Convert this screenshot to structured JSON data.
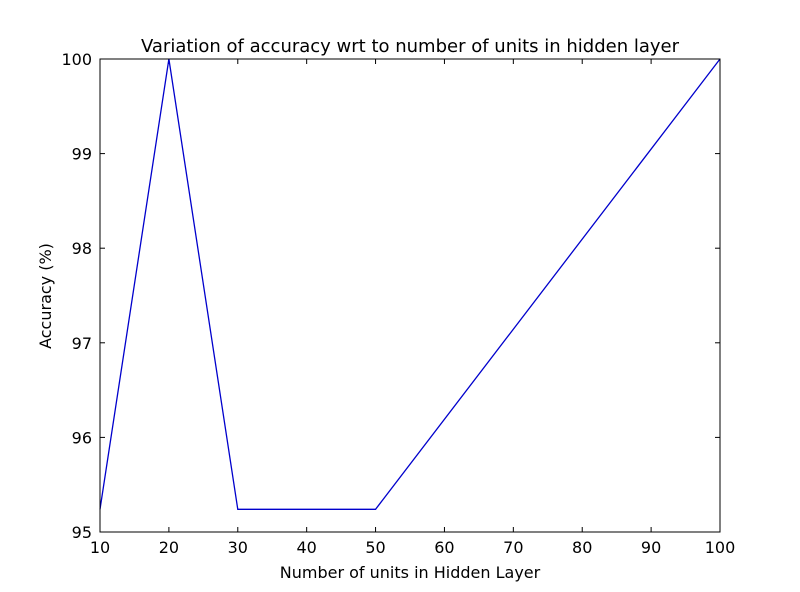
{
  "chart_data": {
    "type": "line",
    "title": "Variation of accuracy wrt to number of units in hidden layer",
    "xlabel": "Number of units in Hidden Layer",
    "ylabel": "Accuracy (%)",
    "xlim": [
      10,
      100
    ],
    "ylim": [
      95,
      100
    ],
    "x_ticks": [
      10,
      20,
      30,
      40,
      50,
      60,
      70,
      80,
      90,
      100
    ],
    "y_ticks": [
      95,
      96,
      97,
      98,
      99,
      100
    ],
    "grid": false,
    "legend": "none",
    "series": [
      {
        "color": "#0000cc",
        "x": [
          10,
          20,
          30,
          50,
          100
        ],
        "y": [
          95.24,
          100,
          95.24,
          95.24,
          100
        ]
      }
    ]
  }
}
